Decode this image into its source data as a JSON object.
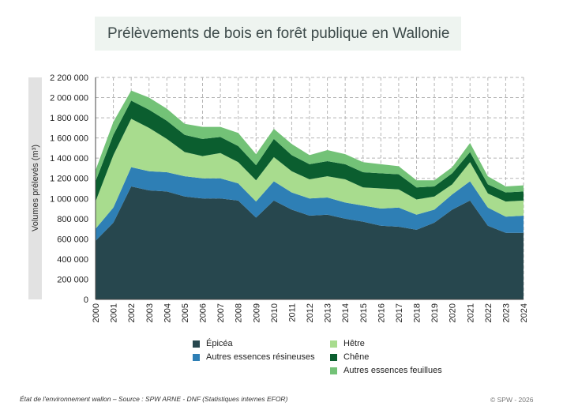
{
  "title": "Prélèvements de bois en forêt publique en Wallonie",
  "footer": {
    "source": "État de l'environnement wallon – Source : SPW ARNE - DNF (Statistiques internes EFOR)",
    "copyright": "© SPW - 2026"
  },
  "chart_data": {
    "type": "area",
    "stacked": true,
    "title": "Prélèvements de bois en forêt publique en Wallonie",
    "ylabel": "Volumes prélevés (m³)",
    "xlabel": "",
    "ylim": [
      0,
      2200000
    ],
    "y_ticks": [
      0,
      200000,
      400000,
      600000,
      800000,
      1000000,
      1200000,
      1400000,
      1600000,
      1800000,
      2000000,
      2200000
    ],
    "y_tick_labels": [
      "0",
      "200 000",
      "400 000",
      "600 000",
      "800 000",
      "1 000 000",
      "1 200 000",
      "1 400 000",
      "1 600 000",
      "1 800 000",
      "2 000 000",
      "2 200 000"
    ],
    "grid": true,
    "legend_position": "bottom",
    "x": [
      "2000",
      "2001",
      "2002",
      "2003",
      "2004",
      "2005",
      "2006",
      "2007",
      "2008",
      "2009",
      "2010",
      "2011",
      "2012",
      "2013",
      "2014",
      "2015",
      "2016",
      "2017",
      "2018",
      "2019",
      "2020",
      "2021",
      "2022",
      "2023",
      "2024"
    ],
    "series": [
      {
        "name": "Épicéa",
        "color": "#27474e",
        "values": [
          580000,
          760000,
          1120000,
          1080000,
          1070000,
          1020000,
          1000000,
          1000000,
          980000,
          810000,
          980000,
          890000,
          830000,
          840000,
          800000,
          770000,
          730000,
          720000,
          690000,
          760000,
          890000,
          980000,
          730000,
          660000,
          660000
        ]
      },
      {
        "name": "Autres essences résineuses",
        "color": "#2e7fb5",
        "values": [
          120000,
          150000,
          190000,
          190000,
          190000,
          200000,
          200000,
          200000,
          170000,
          160000,
          190000,
          170000,
          170000,
          170000,
          160000,
          160000,
          170000,
          190000,
          150000,
          130000,
          150000,
          190000,
          180000,
          160000,
          170000
        ]
      },
      {
        "name": "Hêtre",
        "color": "#a8dc8e",
        "values": [
          270000,
          520000,
          480000,
          430000,
          330000,
          240000,
          220000,
          250000,
          210000,
          210000,
          240000,
          210000,
          190000,
          210000,
          230000,
          180000,
          200000,
          180000,
          150000,
          130000,
          100000,
          190000,
          140000,
          150000,
          150000
        ]
      },
      {
        "name": "Chêne",
        "color": "#0b5e2f",
        "values": [
          200000,
          200000,
          180000,
          180000,
          180000,
          170000,
          170000,
          160000,
          160000,
          150000,
          180000,
          160000,
          150000,
          150000,
          150000,
          150000,
          150000,
          150000,
          120000,
          100000,
          110000,
          100000,
          90000,
          90000,
          90000
        ]
      },
      {
        "name": "Autres essences feuillues",
        "color": "#73c277",
        "values": [
          110000,
          130000,
          100000,
          120000,
          120000,
          110000,
          120000,
          100000,
          130000,
          110000,
          100000,
          110000,
          90000,
          110000,
          100000,
          100000,
          90000,
          80000,
          70000,
          60000,
          60000,
          90000,
          80000,
          60000,
          60000
        ]
      }
    ]
  }
}
